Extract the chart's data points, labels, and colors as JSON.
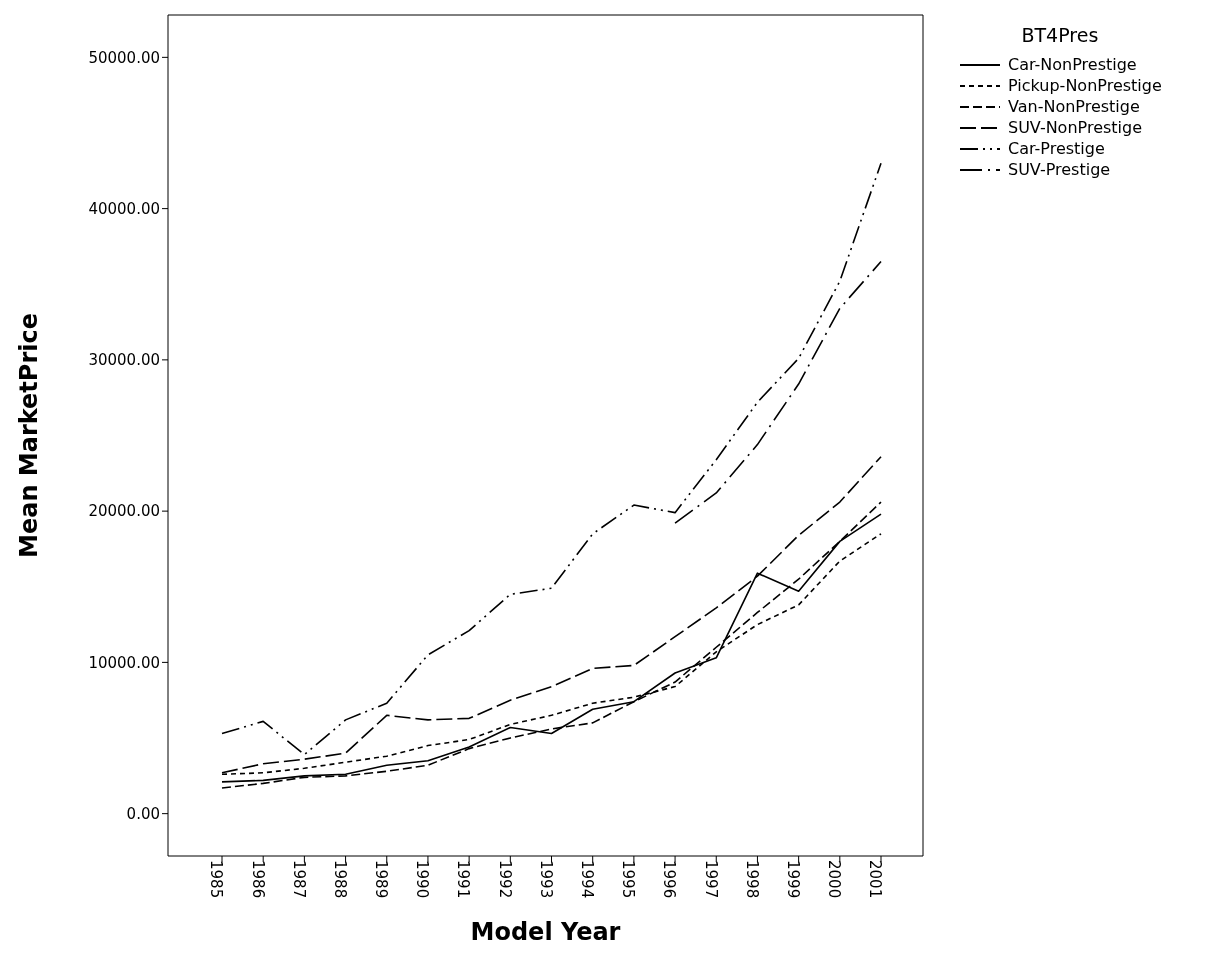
{
  "chart_data": {
    "type": "line",
    "xlabel": "Model Year",
    "ylabel": "Mean MarketPrice",
    "legend_title": "BT4Pres",
    "legend": "right",
    "marker": "none",
    "categories": [
      "1985",
      "1986",
      "1987",
      "1988",
      "1989",
      "1990",
      "1991",
      "1992",
      "1993",
      "1994",
      "1995",
      "1996",
      "1997",
      "1998",
      "1999",
      "2000",
      "2001"
    ],
    "ylim": [
      -2800,
      52800
    ],
    "yticks": [
      {
        "value": 0,
        "label": "0.00"
      },
      {
        "value": 10000,
        "label": "10000.00"
      },
      {
        "value": 20000,
        "label": "20000.00"
      },
      {
        "value": 30000,
        "label": "30000.00"
      },
      {
        "value": 40000,
        "label": "40000.00"
      },
      {
        "value": 50000,
        "label": "50000.00"
      }
    ],
    "series": [
      {
        "name": "Car-NonPrestige",
        "color": "#000000",
        "line_style": "solid",
        "values": [
          2100,
          2200,
          2500,
          2600,
          3200,
          3500,
          4400,
          5700,
          5300,
          6900,
          7400,
          9300,
          10300,
          15900,
          14700,
          18000,
          19800
        ]
      },
      {
        "name": "Pickup-NonPrestige",
        "color": "#000000",
        "line_style": "dotted",
        "values": [
          2600,
          2700,
          3000,
          3400,
          3800,
          4500,
          4900,
          5900,
          6500,
          7300,
          7700,
          8400,
          10700,
          12500,
          13800,
          16700,
          18500
        ]
      },
      {
        "name": "Van-NonPrestige",
        "color": "#000000",
        "line_style": "dashed",
        "values": [
          1700,
          2000,
          2400,
          2500,
          2800,
          3200,
          4300,
          5000,
          5600,
          6000,
          7400,
          8700,
          11000,
          13300,
          15500,
          18000,
          20600
        ]
      },
      {
        "name": "SUV-NonPrestige",
        "color": "#000000",
        "line_style": "longdash",
        "values": [
          2700,
          3300,
          3600,
          4000,
          6500,
          6200,
          6300,
          7500,
          8400,
          9600,
          9800,
          11700,
          13600,
          15700,
          18400,
          20600,
          23600
        ]
      },
      {
        "name": "Car-Prestige",
        "color": "#000000",
        "line_style": "dashdotdot",
        "values": [
          5300,
          6100,
          3900,
          6200,
          7300,
          10500,
          12100,
          14500,
          14900,
          18500,
          20400,
          19900,
          23400,
          27200,
          30100,
          35200,
          43000
        ]
      },
      {
        "name": "SUV-Prestige",
        "color": "#000000",
        "line_style": "dashdot",
        "values": [
          null,
          null,
          null,
          null,
          null,
          null,
          null,
          null,
          null,
          null,
          null,
          19200,
          21200,
          24400,
          28400,
          33400,
          36500
        ]
      }
    ]
  }
}
